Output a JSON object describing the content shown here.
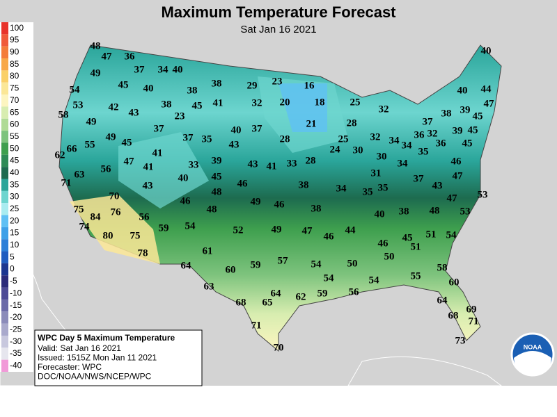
{
  "header": {
    "title": "Maximum Temperature Forecast",
    "subtitle": "Sat Jan 16 2021"
  },
  "legend": {
    "levels": [
      {
        "value": 100,
        "color": "#e8332b"
      },
      {
        "value": 95,
        "color": "#f05a3a"
      },
      {
        "value": 90,
        "color": "#f47c3a"
      },
      {
        "value": 85,
        "color": "#f8a848"
      },
      {
        "value": 80,
        "color": "#fad068"
      },
      {
        "value": 75,
        "color": "#fbe797"
      },
      {
        "value": 70,
        "color": "#fdf5c0"
      },
      {
        "value": 65,
        "color": "#d8edb0"
      },
      {
        "value": 60,
        "color": "#b0db96"
      },
      {
        "value": 55,
        "color": "#7dc37d"
      },
      {
        "value": 50,
        "color": "#3e9f4e"
      },
      {
        "value": 45,
        "color": "#2e8a56"
      },
      {
        "value": 40,
        "color": "#1d6b4f"
      },
      {
        "value": 35,
        "color": "#2aa59a"
      },
      {
        "value": 30,
        "color": "#6dd5cf"
      },
      {
        "value": 25,
        "color": "#a9ecf0"
      },
      {
        "value": 20,
        "color": "#5fc0f4"
      },
      {
        "value": 15,
        "color": "#3ea0e8"
      },
      {
        "value": 10,
        "color": "#2c7fd8"
      },
      {
        "value": 5,
        "color": "#1f5cc0"
      },
      {
        "value": 0,
        "color": "#1b3590"
      },
      {
        "value": -5,
        "color": "#2b2a7a"
      },
      {
        "value": -10,
        "color": "#4d4a96"
      },
      {
        "value": -15,
        "color": "#6b6aa8"
      },
      {
        "value": -20,
        "color": "#8b8bba"
      },
      {
        "value": -25,
        "color": "#a9a9cc"
      },
      {
        "value": -30,
        "color": "#c8c8de"
      },
      {
        "value": -35,
        "color": "#e6e6ee"
      },
      {
        "value": -40,
        "color": "#f19ad8"
      }
    ]
  },
  "info": {
    "heading": "WPC Day 5 Maximum Temperature",
    "lines": [
      "Valid: Sat Jan 16 2021",
      "Issued: 1515Z Mon Jan 11 2021",
      "Forecaster: WPC",
      "DOC/NOAA/NWS/NCEP/WPC"
    ]
  },
  "logo": "NOAA",
  "temperatures": [
    48,
    47,
    36,
    37,
    34,
    40,
    49,
    54,
    45,
    40,
    38,
    38,
    29,
    23,
    16,
    40,
    40,
    44,
    53,
    42,
    43,
    38,
    45,
    41,
    32,
    20,
    18,
    25,
    32,
    37,
    38,
    39,
    45,
    47,
    58,
    49,
    23,
    37,
    40,
    37,
    21,
    28,
    32,
    34,
    36,
    32,
    34,
    39,
    45,
    62,
    66,
    55,
    49,
    45,
    37,
    35,
    43,
    28,
    25,
    24,
    30,
    30,
    35,
    36,
    45,
    41,
    47,
    41,
    33,
    39,
    43,
    41,
    33,
    28,
    46,
    63,
    56,
    40,
    45,
    31,
    34,
    37,
    47,
    71,
    43,
    46,
    38,
    34,
    35,
    35,
    43,
    48,
    70,
    46,
    49,
    46,
    47,
    53,
    75,
    84,
    76,
    56,
    48,
    38,
    40,
    38,
    48,
    53,
    74,
    54,
    59,
    52,
    49,
    47,
    44,
    51,
    54,
    80,
    75,
    46,
    45,
    46,
    51,
    78,
    61,
    50,
    50,
    57,
    59,
    54,
    64,
    60,
    58,
    54,
    54,
    55,
    60,
    63,
    64,
    62,
    59,
    56,
    68,
    65,
    64,
    69,
    68,
    71,
    71,
    73,
    70
  ]
}
